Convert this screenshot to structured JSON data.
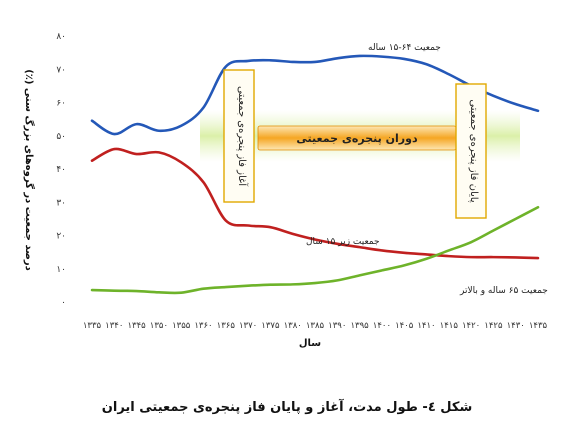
{
  "caption": "شکل ٤- طول مدت، آغاز و پایان فاز پنجره‌ی جمعیتی ایران",
  "chart_data": {
    "type": "line",
    "xlabel": "سال",
    "ylabel": "درصد جمعیت در گروه‌های بزرگ سنی (٪)",
    "ylim": [
      0,
      80
    ],
    "xlim": [
      1335,
      1435
    ],
    "grid": false,
    "y_tick_labels": [
      "۰",
      "۱۰",
      "۲۰",
      "۳۰",
      "۴۰",
      "۵۰",
      "۶۰",
      "۷۰",
      "۸۰"
    ],
    "y_ticks": [
      0,
      10,
      20,
      30,
      40,
      50,
      60,
      70,
      80
    ],
    "x_ticks": [
      1335,
      1340,
      1345,
      1350,
      1355,
      1360,
      1365,
      1370,
      1375,
      1380,
      1385,
      1390,
      1395,
      1400,
      1405,
      1410,
      1415,
      1420,
      1425,
      1430,
      1435
    ],
    "x_tick_labels": [
      "۱۳۳۵",
      "۱۳۴۰",
      "۱۳۴۵",
      "۱۳۵۰",
      "۱۳۵۵",
      "۱۳۶۰",
      "۱۳۶۵",
      "۱۳۷۰",
      "۱۳۷۵",
      "۱۳۸۰",
      "۱۳۸۵",
      "۱۳۹۰",
      "۱۳۹۵",
      "۱۴۰۰",
      "۱۴۰۵",
      "۱۴۱۰",
      "۱۴۱۵",
      "۱۴۲۰",
      "۱۴۲۵",
      "۱۴۳۰",
      "۱۴۳۵"
    ],
    "series": [
      {
        "name": "جمعیت ۶۴-۱۵ ساله",
        "color": "#2458b8",
        "x": [
          1335,
          1340,
          1345,
          1350,
          1355,
          1360,
          1365,
          1370,
          1375,
          1380,
          1385,
          1390,
          1395,
          1400,
          1405,
          1410,
          1415,
          1420,
          1425,
          1430,
          1435
        ],
        "values": [
          54.5,
          50.5,
          53.5,
          51.5,
          53,
          58.5,
          70.8,
          72.5,
          72.7,
          72.2,
          72.2,
          73.3,
          74.0,
          73.8,
          73.1,
          71.5,
          68.5,
          65.0,
          62.0,
          59.5,
          57.5
        ]
      },
      {
        "name": "جمعیت زیر ۱۵ سال",
        "color": "#c0201f",
        "x": [
          1335,
          1340,
          1345,
          1350,
          1355,
          1360,
          1365,
          1370,
          1375,
          1380,
          1385,
          1390,
          1395,
          1400,
          1405,
          1410,
          1415,
          1420,
          1425,
          1430,
          1435
        ],
        "values": [
          42.5,
          46.0,
          44.5,
          45.0,
          42.0,
          36.0,
          24.5,
          23.0,
          22.5,
          20.5,
          18.8,
          17.5,
          16.5,
          15.5,
          14.8,
          14.3,
          13.8,
          13.5,
          13.5,
          13.4,
          13.2
        ]
      },
      {
        "name": "جمعیت ۶۵ ساله و بالاتر",
        "color": "#6eb32a",
        "x": [
          1335,
          1340,
          1345,
          1350,
          1355,
          1360,
          1365,
          1370,
          1375,
          1380,
          1385,
          1390,
          1395,
          1400,
          1405,
          1410,
          1415,
          1420,
          1425,
          1430,
          1435
        ],
        "values": [
          3.6,
          3.4,
          3.3,
          2.9,
          2.8,
          4.0,
          4.5,
          4.9,
          5.2,
          5.3,
          5.7,
          6.5,
          8.0,
          9.5,
          11.0,
          13.0,
          15.5,
          18.0,
          21.5,
          25.0,
          28.5
        ]
      }
    ],
    "annotations": {
      "window_start": "آغاز فاز پنجره‌ی جمعیتی",
      "window_end": "پایان فاز پنجره‌ی جمعیتی",
      "window_period": "دوران پنجره‌ی جمعیتی",
      "period_color": "#f5a623"
    }
  }
}
